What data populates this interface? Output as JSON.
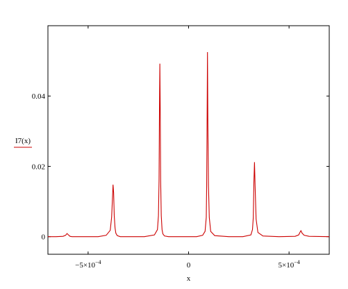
{
  "chart_data": {
    "type": "line",
    "xlabel": "x",
    "legend": [
      {
        "label": "I7(x)",
        "color": "#cc0000",
        "line_style": "solid"
      }
    ],
    "xlim": [
      -0.0007,
      0.0007
    ],
    "ylim": [
      -0.005,
      0.06
    ],
    "grid": false,
    "x_ticks": [
      {
        "value": -0.0005,
        "label": "−5×10",
        "exp": "−4"
      },
      {
        "value": 0,
        "label": "0",
        "exp": ""
      },
      {
        "value": 0.0005,
        "label": "5×10",
        "exp": "−4"
      }
    ],
    "y_ticks": [
      {
        "value": 0,
        "label": "0"
      },
      {
        "value": 0.02,
        "label": "0.02"
      },
      {
        "value": 0.04,
        "label": "0.04"
      }
    ],
    "series": [
      {
        "name": "I7(x)",
        "color": "#cc0000",
        "x": [
          -0.0007,
          -0.00066,
          -0.000625,
          -0.000612,
          -0.000605,
          -0.000598,
          -0.00059,
          -0.00058,
          -0.00052,
          -0.00045,
          -0.00041,
          -0.00039,
          -0.000383,
          -0.000378,
          -0.000376,
          -0.000373,
          -0.00037,
          -0.000366,
          -0.000362,
          -0.000355,
          -0.00034,
          -0.0003,
          -0.00022,
          -0.00017,
          -0.000155,
          -0.00015,
          -0.000147,
          -0.000145,
          -0.000143,
          -0.000141,
          -0.000139,
          -0.000136,
          -0.000132,
          -0.000128,
          -0.00012,
          -0.0001,
          -5e-05,
          4e-05,
          7e-05,
          8.2e-05,
          8.8e-05,
          9e-05,
          9.2e-05,
          9.4e-05,
          9.6e-05,
          9.9e-05,
          0.000103,
          0.00011,
          0.00013,
          0.0002,
          0.00027,
          0.00031,
          0.000318,
          0.000322,
          0.000325,
          0.000328,
          0.000331,
          0.000336,
          0.000345,
          0.00037,
          0.00045,
          0.00053,
          0.000548,
          0.000554,
          0.000559,
          0.000565,
          0.000575,
          0.0006,
          0.0007
        ],
        "y": [
          0,
          0,
          0.0001,
          0.0004,
          0.0009,
          0.0005,
          0.0001,
          0,
          0,
          0,
          0.0004,
          0.0018,
          0.0055,
          0.012,
          0.0148,
          0.0125,
          0.006,
          0.0025,
          0.001,
          0.0003,
          0,
          0,
          0,
          0.0005,
          0.002,
          0.006,
          0.016,
          0.0355,
          0.0492,
          0.0355,
          0.016,
          0.006,
          0.002,
          0.0008,
          0.0002,
          0,
          0,
          0,
          0.0004,
          0.0015,
          0.0055,
          0.0145,
          0.032,
          0.0525,
          0.032,
          0.0145,
          0.0055,
          0.0015,
          0.0003,
          0,
          0,
          0.0005,
          0.002,
          0.0055,
          0.0155,
          0.0212,
          0.0145,
          0.005,
          0.0012,
          0.0002,
          0,
          0.0001,
          0.0005,
          0.0012,
          0.0017,
          0.001,
          0.0004,
          0.0001,
          0
        ]
      }
    ]
  }
}
